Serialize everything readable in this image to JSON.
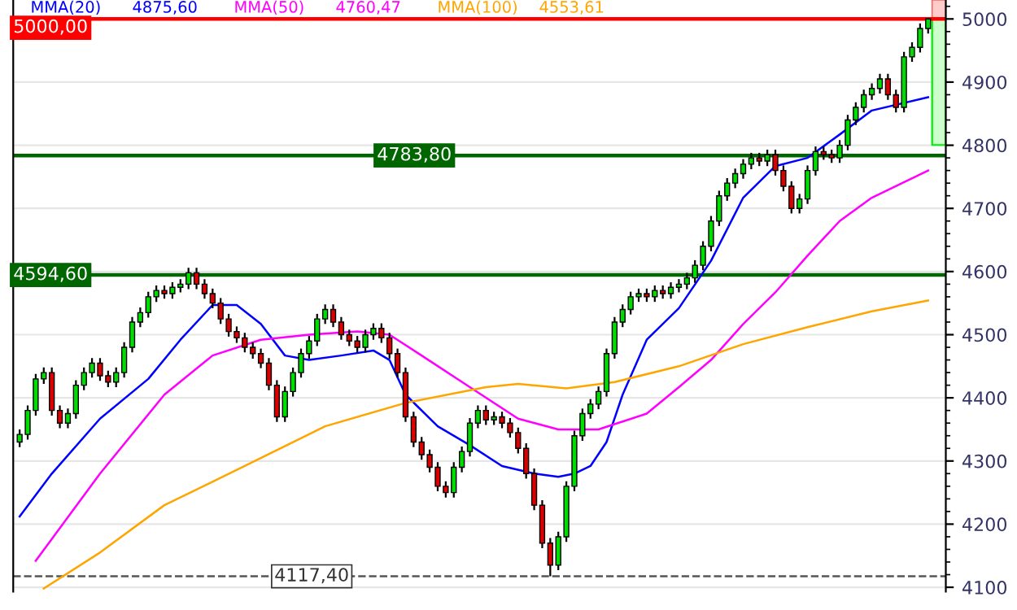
{
  "chart_data": {
    "type": "candlestick",
    "categories": [
      null,
      null,
      null,
      null,
      null,
      null,
      null,
      null,
      null,
      null,
      null,
      null,
      null,
      null,
      null,
      null,
      null,
      null,
      null,
      null,
      null,
      null,
      null,
      null,
      null,
      null,
      null,
      null,
      null,
      null,
      null,
      null,
      null,
      null,
      null,
      null,
      null,
      null,
      null,
      null,
      null,
      null,
      null,
      null,
      null,
      null,
      null,
      null,
      null,
      null,
      null,
      null,
      null,
      null,
      null,
      null,
      null,
      null,
      null,
      null,
      null,
      null,
      null,
      null,
      null,
      null,
      null,
      null,
      null,
      null,
      null,
      null,
      null,
      null,
      null,
      null,
      null,
      null,
      null,
      null,
      null,
      null,
      null,
      null,
      null,
      null,
      null,
      null,
      null,
      null,
      null,
      null,
      null,
      null,
      null,
      null,
      null,
      null,
      null,
      null,
      null,
      null,
      null,
      null,
      null,
      null,
      null,
      null,
      null,
      null,
      null,
      null,
      null,
      null
    ],
    "ohlc": [
      [
        4330,
        4350,
        4322,
        4342
      ],
      [
        4342,
        4388,
        4334,
        4380
      ],
      [
        4380,
        4438,
        4372,
        4430
      ],
      [
        4430,
        4448,
        4422,
        4440
      ],
      [
        4440,
        4448,
        4372,
        4380
      ],
      [
        4380,
        4388,
        4352,
        4360
      ],
      [
        4360,
        4383,
        4352,
        4375
      ],
      [
        4375,
        4428,
        4367,
        4420
      ],
      [
        4420,
        4448,
        4412,
        4440
      ],
      [
        4440,
        4463,
        4432,
        4455
      ],
      [
        4455,
        4463,
        4427,
        4435
      ],
      [
        4435,
        4443,
        4417,
        4425
      ],
      [
        4425,
        4448,
        4417,
        4440
      ],
      [
        4440,
        4488,
        4432,
        4480
      ],
      [
        4480,
        4528,
        4472,
        4520
      ],
      [
        4520,
        4543,
        4512,
        4535
      ],
      [
        4535,
        4568,
        4527,
        4560
      ],
      [
        4560,
        4578,
        4552,
        4570
      ],
      [
        4570,
        4578,
        4557,
        4565
      ],
      [
        4565,
        4583,
        4557,
        4575
      ],
      [
        4575,
        4588,
        4567,
        4580
      ],
      [
        4580,
        4606,
        4572,
        4598
      ],
      [
        4598,
        4606,
        4572,
        4580
      ],
      [
        4580,
        4588,
        4557,
        4565
      ],
      [
        4565,
        4573,
        4542,
        4550
      ],
      [
        4550,
        4558,
        4517,
        4525
      ],
      [
        4525,
        4533,
        4497,
        4505
      ],
      [
        4505,
        4513,
        4487,
        4495
      ],
      [
        4495,
        4503,
        4472,
        4480
      ],
      [
        4480,
        4488,
        4462,
        4470
      ],
      [
        4470,
        4478,
        4447,
        4455
      ],
      [
        4455,
        4463,
        4412,
        4420
      ],
      [
        4420,
        4428,
        4362,
        4370
      ],
      [
        4370,
        4418,
        4362,
        4410
      ],
      [
        4410,
        4448,
        4402,
        4440
      ],
      [
        4440,
        4478,
        4432,
        4470
      ],
      [
        4470,
        4498,
        4462,
        4490
      ],
      [
        4490,
        4533,
        4482,
        4525
      ],
      [
        4525,
        4548,
        4517,
        4540
      ],
      [
        4540,
        4548,
        4512,
        4520
      ],
      [
        4520,
        4528,
        4492,
        4500
      ],
      [
        4500,
        4508,
        4482,
        4490
      ],
      [
        4490,
        4498,
        4472,
        4480
      ],
      [
        4480,
        4508,
        4472,
        4500
      ],
      [
        4500,
        4518,
        4492,
        4510
      ],
      [
        4510,
        4518,
        4487,
        4495
      ],
      [
        4495,
        4503,
        4462,
        4470
      ],
      [
        4470,
        4478,
        4432,
        4440
      ],
      [
        4440,
        4448,
        4362,
        4370
      ],
      [
        4370,
        4378,
        4322,
        4330
      ],
      [
        4330,
        4338,
        4302,
        4310
      ],
      [
        4310,
        4318,
        4282,
        4290
      ],
      [
        4290,
        4298,
        4252,
        4260
      ],
      [
        4260,
        4268,
        4242,
        4250
      ],
      [
        4250,
        4298,
        4242,
        4290
      ],
      [
        4290,
        4323,
        4282,
        4315
      ],
      [
        4315,
        4368,
        4307,
        4360
      ],
      [
        4360,
        4388,
        4352,
        4380
      ],
      [
        4380,
        4388,
        4357,
        4365
      ],
      [
        4365,
        4378,
        4357,
        4370
      ],
      [
        4370,
        4378,
        4352,
        4360
      ],
      [
        4360,
        4368,
        4337,
        4345
      ],
      [
        4345,
        4353,
        4312,
        4320
      ],
      [
        4320,
        4328,
        4272,
        4280
      ],
      [
        4280,
        4288,
        4222,
        4230
      ],
      [
        4230,
        4238,
        4162,
        4170
      ],
      [
        4170,
        4178,
        4117.4,
        4135
      ],
      [
        4135,
        4188,
        4127,
        4180
      ],
      [
        4180,
        4268,
        4172,
        4260
      ],
      [
        4260,
        4348,
        4252,
        4340
      ],
      [
        4340,
        4383,
        4332,
        4375
      ],
      [
        4375,
        4398,
        4367,
        4390
      ],
      [
        4390,
        4418,
        4382,
        4410
      ],
      [
        4410,
        4478,
        4402,
        4470
      ],
      [
        4470,
        4528,
        4462,
        4520
      ],
      [
        4520,
        4548,
        4512,
        4540
      ],
      [
        4540,
        4568,
        4532,
        4560
      ],
      [
        4560,
        4573,
        4552,
        4565
      ],
      [
        4565,
        4573,
        4552,
        4560
      ],
      [
        4560,
        4578,
        4552,
        4570
      ],
      [
        4570,
        4578,
        4557,
        4565
      ],
      [
        4565,
        4583,
        4557,
        4575
      ],
      [
        4575,
        4588,
        4567,
        4580
      ],
      [
        4580,
        4598,
        4572,
        4590
      ],
      [
        4590,
        4618,
        4582,
        4610
      ],
      [
        4610,
        4648,
        4602,
        4640
      ],
      [
        4640,
        4688,
        4632,
        4680
      ],
      [
        4680,
        4728,
        4672,
        4720
      ],
      [
        4720,
        4748,
        4712,
        4740
      ],
      [
        4740,
        4763,
        4732,
        4755
      ],
      [
        4755,
        4778,
        4747,
        4770
      ],
      [
        4770,
        4788,
        4762,
        4780
      ],
      [
        4780,
        4788,
        4767,
        4775
      ],
      [
        4775,
        4793,
        4767,
        4785
      ],
      [
        4785,
        4793,
        4752,
        4760
      ],
      [
        4760,
        4768,
        4727,
        4735
      ],
      [
        4735,
        4743,
        4692,
        4700
      ],
      [
        4700,
        4723,
        4692,
        4715
      ],
      [
        4715,
        4768,
        4707,
        4760
      ],
      [
        4760,
        4798,
        4752,
        4790
      ],
      [
        4790,
        4798,
        4777,
        4785
      ],
      [
        4785,
        4793,
        4772,
        4780
      ],
      [
        4780,
        4808,
        4772,
        4800
      ],
      [
        4800,
        4848,
        4792,
        4840
      ],
      [
        4840,
        4868,
        4832,
        4860
      ],
      [
        4860,
        4888,
        4852,
        4880
      ],
      [
        4880,
        4898,
        4872,
        4890
      ],
      [
        4890,
        4913,
        4882,
        4905
      ],
      [
        4905,
        4913,
        4872,
        4880
      ],
      [
        4880,
        4888,
        4852,
        4860
      ],
      [
        4860,
        4948,
        4852,
        4940
      ],
      [
        4940,
        4963,
        4932,
        4955
      ],
      [
        4955,
        4993,
        4947,
        4985
      ],
      [
        4985,
        5000,
        4977,
        5000
      ]
    ],
    "series": [
      {
        "name": "MMA(20)",
        "type": "line",
        "color": "#0000ff",
        "values": [
          4212,
          null,
          null,
          null,
          4280,
          null,
          null,
          null,
          null,
          null,
          4367,
          null,
          null,
          null,
          null,
          null,
          4430,
          null,
          null,
          null,
          4492,
          null,
          null,
          null,
          4547,
          null,
          null,
          4547,
          null,
          null,
          4517,
          null,
          null,
          4467,
          null,
          null,
          4460,
          null,
          null,
          null,
          4467,
          null,
          null,
          null,
          4475,
          null,
          4460,
          null,
          4405,
          null,
          null,
          null,
          4355,
          null,
          null,
          null,
          4325,
          null,
          null,
          null,
          4292,
          null,
          null,
          null,
          4280,
          null,
          null,
          4275,
          null,
          4280,
          null,
          4292,
          null,
          4330,
          null,
          4405,
          null,
          null,
          4492,
          null,
          null,
          null,
          4542,
          null,
          null,
          null,
          4617,
          null,
          null,
          null,
          4717,
          null,
          null,
          null,
          4767,
          null,
          null,
          null,
          4780,
          null,
          null,
          null,
          4817,
          null,
          null,
          null,
          4855,
          null,
          null,
          null,
          null,
          null,
          null,
          4876
        ]
      },
      {
        "name": "MMA(50)",
        "type": "line",
        "color": "#ff00ff",
        "values": [
          null,
          null,
          4142,
          null,
          null,
          null,
          null,
          null,
          null,
          null,
          4280,
          null,
          null,
          null,
          null,
          null,
          null,
          null,
          4405,
          null,
          null,
          null,
          null,
          null,
          4467,
          null,
          null,
          null,
          null,
          null,
          4492,
          null,
          null,
          null,
          null,
          null,
          4500,
          null,
          null,
          null,
          null,
          null,
          4505,
          null,
          null,
          null,
          4500,
          null,
          null,
          null,
          4467,
          null,
          null,
          null,
          null,
          null,
          4417,
          null,
          null,
          null,
          null,
          null,
          4367,
          null,
          null,
          null,
          null,
          4350,
          null,
          null,
          null,
          null,
          4350,
          null,
          null,
          null,
          null,
          null,
          4375,
          null,
          null,
          null,
          4417,
          null,
          null,
          null,
          4460,
          null,
          null,
          null,
          4517,
          null,
          null,
          null,
          4567,
          null,
          null,
          null,
          4625,
          null,
          null,
          null,
          4680,
          null,
          null,
          null,
          4717,
          null,
          null,
          null,
          null,
          null,
          null,
          4760
        ]
      },
      {
        "name": "MMA(100)",
        "type": "line",
        "color": "#ffa500",
        "values": [
          null,
          null,
          null,
          4098,
          null,
          null,
          null,
          null,
          null,
          null,
          4155,
          null,
          null,
          null,
          null,
          null,
          null,
          null,
          4230,
          null,
          null,
          null,
          null,
          null,
          null,
          null,
          null,
          null,
          4292,
          null,
          null,
          null,
          null,
          null,
          null,
          null,
          null,
          null,
          4355,
          null,
          null,
          null,
          null,
          null,
          null,
          null,
          null,
          null,
          4392,
          null,
          null,
          null,
          null,
          null,
          null,
          null,
          null,
          null,
          4417,
          null,
          null,
          null,
          4422,
          null,
          null,
          null,
          null,
          null,
          4415,
          null,
          null,
          null,
          null,
          null,
          4425,
          null,
          null,
          null,
          null,
          null,
          null,
          null,
          4450,
          null,
          null,
          null,
          null,
          null,
          null,
          null,
          4485,
          null,
          null,
          null,
          null,
          null,
          null,
          null,
          4512,
          null,
          null,
          null,
          null,
          null,
          null,
          null,
          4537,
          null,
          null,
          null,
          null,
          null,
          null,
          4554
        ]
      }
    ],
    "annotations": [
      "4875,60",
      "4760,47",
      "4553,61"
    ],
    "ylim": [
      4093,
      5030
    ],
    "yticks": [
      4100,
      4200,
      4300,
      4400,
      4500,
      4600,
      4700,
      4800,
      4900,
      5000
    ],
    "grid": "y",
    "ref_lines": [
      {
        "axis": "y",
        "value": 5000,
        "label": "5000,00",
        "color": "#ff0000",
        "line_style": "solid"
      },
      {
        "axis": "y",
        "value": 4783.8,
        "label": "4783,80",
        "color": "#006600",
        "line_style": "solid"
      },
      {
        "axis": "y",
        "value": 4594.6,
        "label": "4594,60",
        "color": "#006600",
        "line_style": "solid"
      },
      {
        "axis": "y",
        "value": 4117.4,
        "label": "4117,40",
        "color": "#555555",
        "line_style": "dashed"
      }
    ]
  }
}
